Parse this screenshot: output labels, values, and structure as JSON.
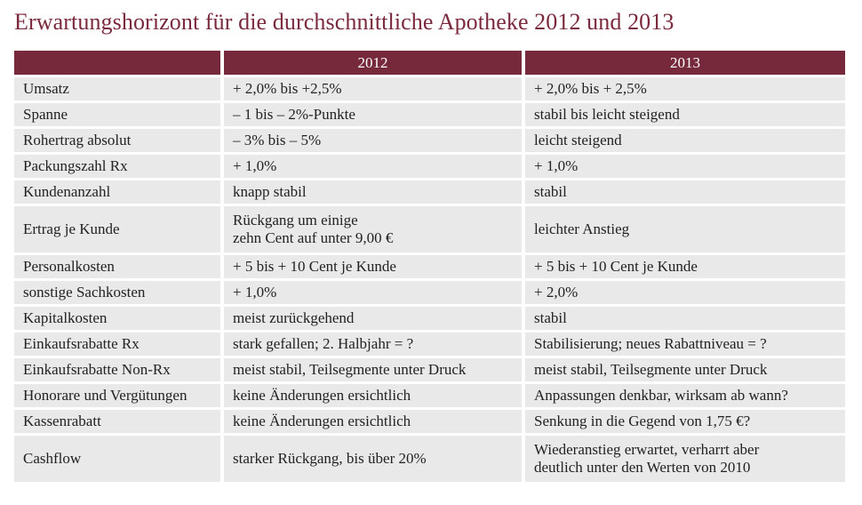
{
  "title": "Erwartungshorizont für die durchschnittliche Apotheke 2012 und 2013",
  "table": {
    "headers": [
      "",
      "2012",
      "2013"
    ],
    "rows": [
      {
        "label": "Umsatz",
        "y2012": "+ 2,0% bis +2,5%",
        "y2013": "+ 2,0% bis + 2,5%"
      },
      {
        "label": "Spanne",
        "y2012": "– 1 bis – 2%-Punkte",
        "y2013": "stabil bis leicht steigend"
      },
      {
        "label": "Rohertrag absolut",
        "y2012": "– 3% bis – 5%",
        "y2013": "leicht steigend"
      },
      {
        "label": "Packungszahl Rx",
        "y2012": "+ 1,0%",
        "y2013": "+ 1,0%"
      },
      {
        "label": "Kundenanzahl",
        "y2012": "knapp stabil",
        "y2013": "stabil"
      },
      {
        "label": "Ertrag je Kunde",
        "y2012": "Rückgang um einige\nzehn Cent auf unter 9,00 €",
        "y2013": "leichter Anstieg"
      },
      {
        "label": "Personalkosten",
        "y2012": "+ 5 bis + 10 Cent je Kunde",
        "y2013": "+ 5 bis + 10 Cent je Kunde"
      },
      {
        "label": "sonstige Sachkosten",
        "y2012": "+ 1,0%",
        "y2013": "+ 2,0%"
      },
      {
        "label": "Kapitalkosten",
        "y2012": "meist zurückgehend",
        "y2013": "stabil"
      },
      {
        "label": "Einkaufsrabatte Rx",
        "y2012": "stark gefallen; 2. Halbjahr = ?",
        "y2013": "Stabilisierung; neues Rabattniveau = ?"
      },
      {
        "label": "Einkaufsrabatte Non-Rx",
        "y2012": "meist stabil, Teilsegmente unter Druck",
        "y2013": "meist stabil, Teilsegmente unter Druck"
      },
      {
        "label": "Honorare und Vergütungen",
        "y2012": "keine Änderungen ersichtlich",
        "y2013": "Anpassungen denkbar, wirksam ab wann?"
      },
      {
        "label": "Kassenrabatt",
        "y2012": "keine Änderungen ersichtlich",
        "y2013": "Senkung in die Gegend von 1,75 €?"
      },
      {
        "label": "Cashflow",
        "y2012": "starker Rückgang, bis über 20%",
        "y2013": "Wiederanstieg erwartet, verharrt aber\ndeutlich unter den Werten von 2010"
      }
    ]
  },
  "colors": {
    "header_bg": "#76293b",
    "title": "#7a2a3c",
    "cell_bg": "#e9e9e9"
  }
}
